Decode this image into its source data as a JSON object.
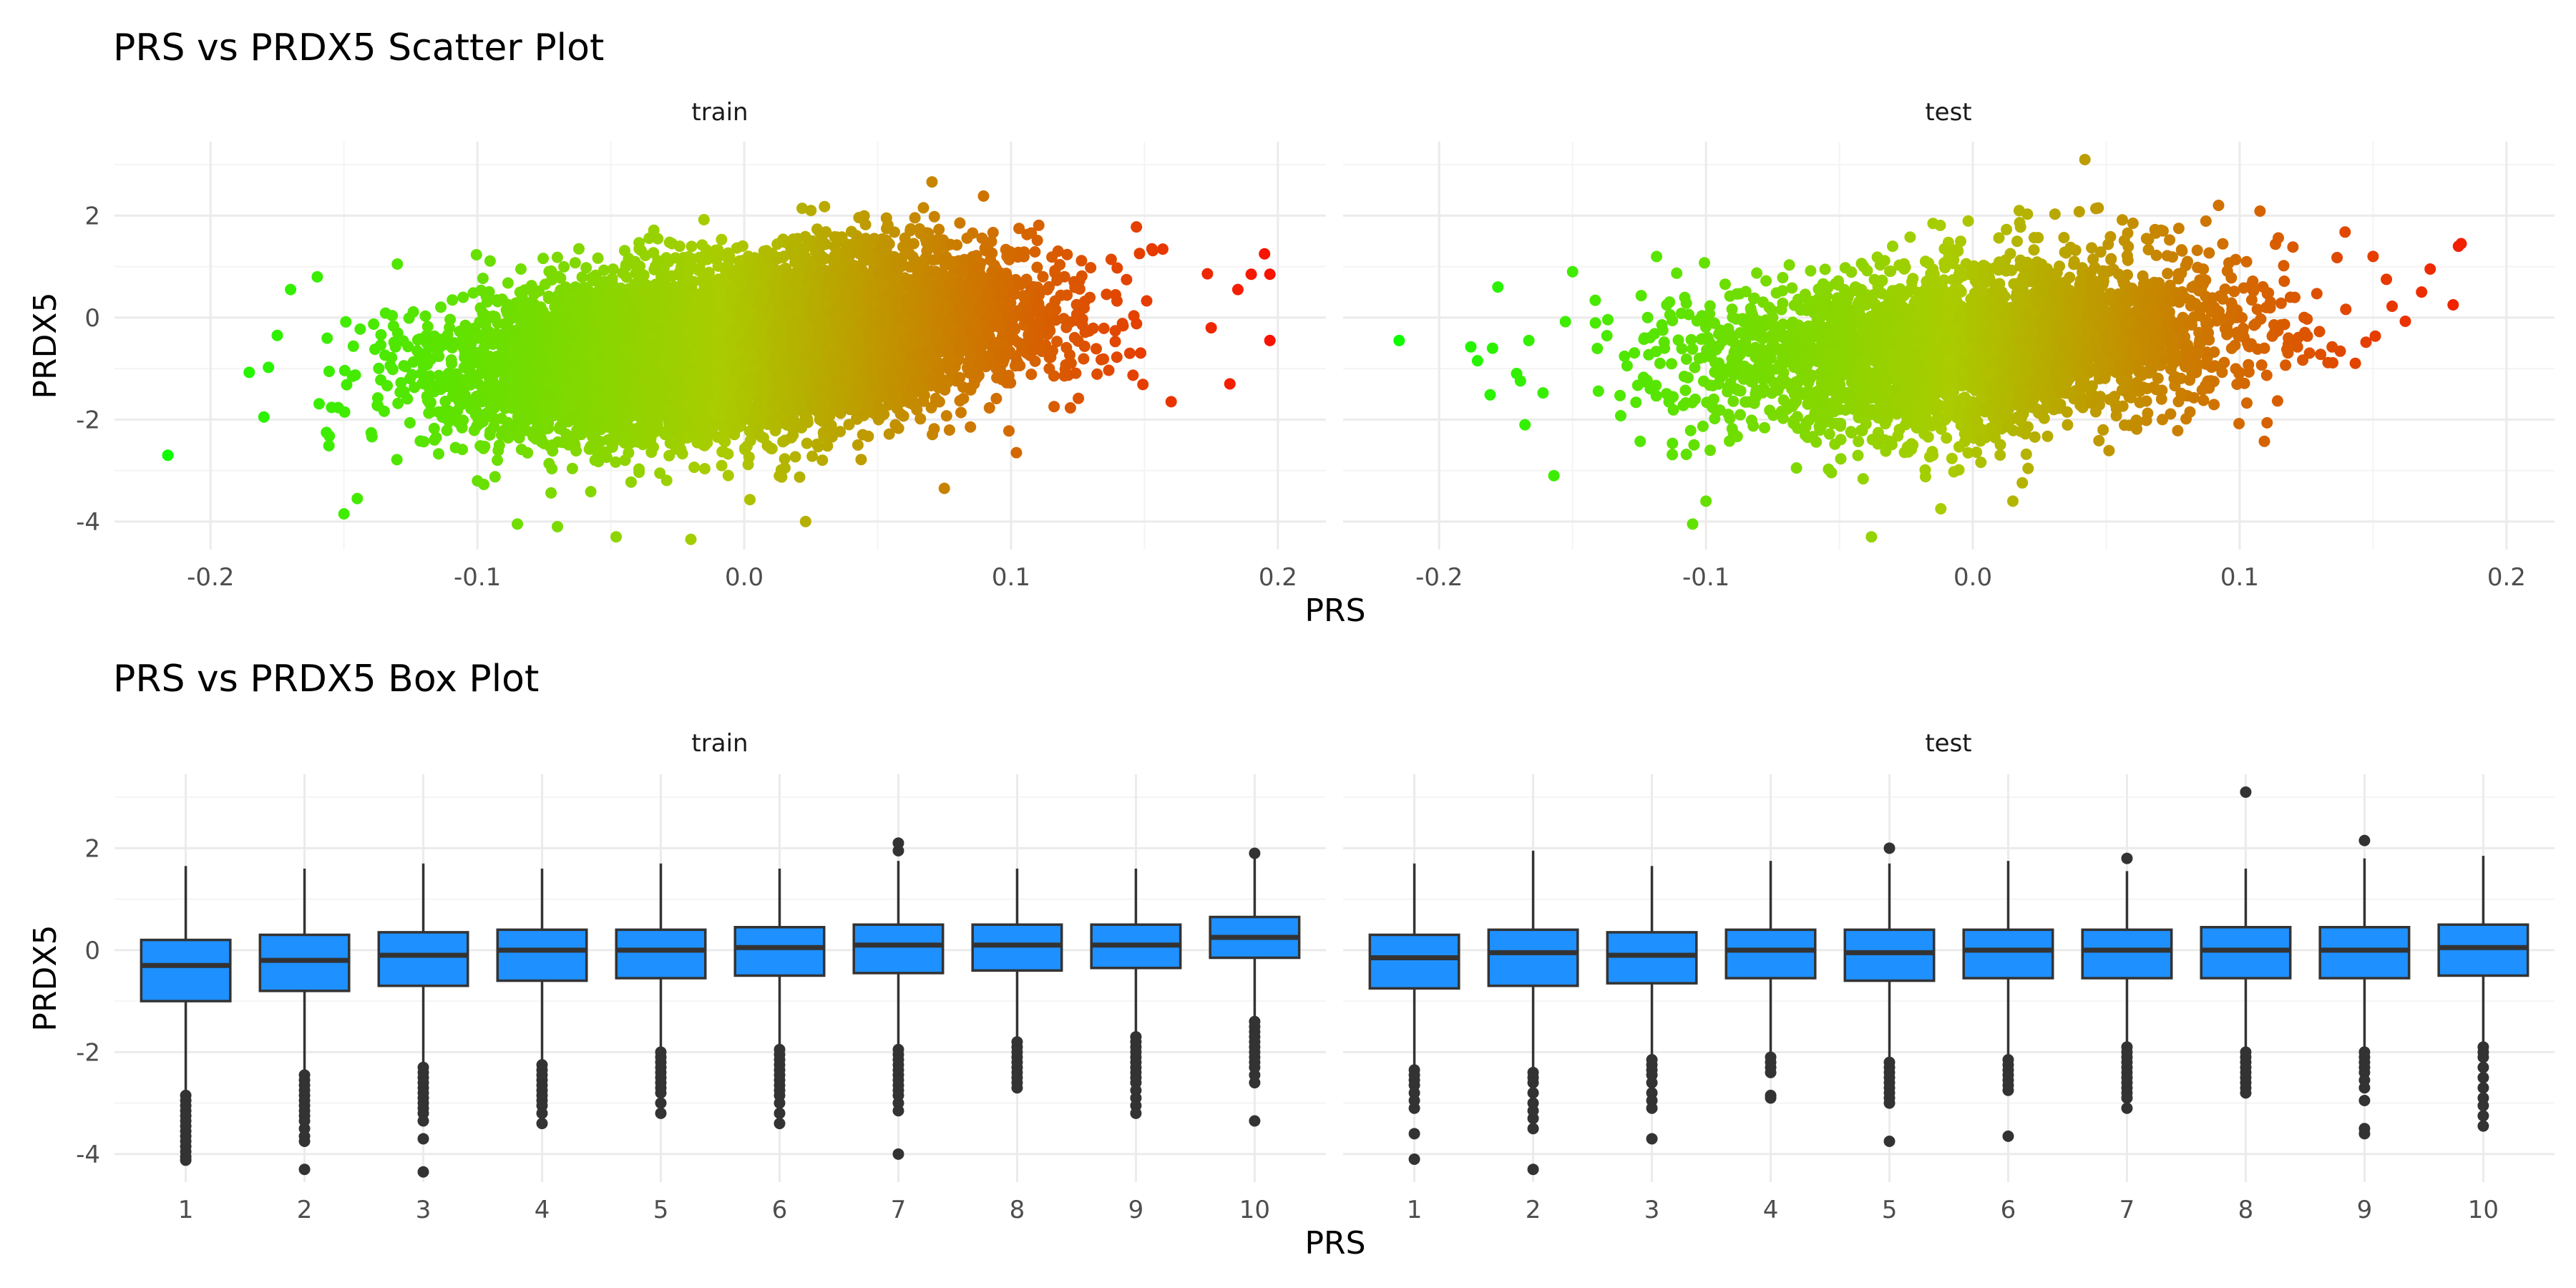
{
  "colors": {
    "panel_bg": "#ffffff",
    "grid_major": "#ebebeb",
    "grid_minor": "#f4f4f4",
    "box_fill": "#1e90ff",
    "box_stroke": "#333333",
    "outlier": "#333333",
    "gradient_low": "#00ff00",
    "gradient_mid": "#aacc00",
    "gradient_high": "#ff0000"
  },
  "chart_data": [
    {
      "type": "scatter",
      "title": "PRS vs PRDX5 Scatter Plot",
      "xlabel": "PRS",
      "ylabel": "PRDX5",
      "xlim": [
        -0.236,
        0.218
      ],
      "ylim": [
        -4.55,
        3.45
      ],
      "x_ticks": [
        -0.2,
        -0.1,
        0.0,
        0.1,
        0.2
      ],
      "x_tick_labels": [
        "-0.2",
        "-0.1",
        "0.0",
        "0.1",
        "0.2"
      ],
      "y_ticks": [
        -4,
        -2,
        0,
        2
      ],
      "y_tick_labels": [
        "-4",
        "-2",
        "0",
        "2"
      ],
      "grid": true,
      "color_by": "PRS",
      "color_scale": [
        "#00ff00",
        "#ff0000"
      ],
      "facets": [
        {
          "label": "train",
          "cloud": {
            "n": 9000,
            "x_mean": 0.0,
            "x_sd": 0.05,
            "y_intercept": -0.55,
            "y_slope": 5.0,
            "y_sd": 0.78
          },
          "extreme_points": [
            {
              "x": -0.216,
              "y": -2.7
            },
            {
              "x": -0.18,
              "y": -1.95
            },
            {
              "x": -0.175,
              "y": -0.35
            },
            {
              "x": -0.17,
              "y": 0.55
            },
            {
              "x": -0.16,
              "y": 0.8
            },
            {
              "x": -0.15,
              "y": -3.85
            },
            {
              "x": -0.145,
              "y": -3.55
            },
            {
              "x": -0.13,
              "y": 1.05
            },
            {
              "x": -0.085,
              "y": -4.05
            },
            {
              "x": -0.07,
              "y": -4.1
            },
            {
              "x": -0.048,
              "y": -4.3
            },
            {
              "x": -0.02,
              "y": -4.35
            },
            {
              "x": 0.023,
              "y": -4.0
            },
            {
              "x": 0.025,
              "y": 2.1
            },
            {
              "x": 0.075,
              "y": -3.35
            },
            {
              "x": 0.102,
              "y": -2.65
            },
            {
              "x": 0.16,
              "y": -1.65
            },
            {
              "x": 0.175,
              "y": -0.2
            },
            {
              "x": 0.182,
              "y": -1.3
            },
            {
              "x": 0.185,
              "y": 0.55
            },
            {
              "x": 0.19,
              "y": 0.85
            },
            {
              "x": 0.195,
              "y": 1.25
            },
            {
              "x": 0.197,
              "y": 0.85
            },
            {
              "x": 0.197,
              "y": -0.45
            }
          ]
        },
        {
          "label": "test",
          "cloud": {
            "n": 3500,
            "x_mean": 0.0,
            "x_sd": 0.05,
            "y_intercept": -0.55,
            "y_slope": 3.5,
            "y_sd": 0.8
          },
          "extreme_points": [
            {
              "x": -0.215,
              "y": -0.45
            },
            {
              "x": -0.18,
              "y": -0.6
            },
            {
              "x": -0.178,
              "y": 0.6
            },
            {
              "x": -0.157,
              "y": -3.1
            },
            {
              "x": -0.15,
              "y": 0.9
            },
            {
              "x": -0.105,
              "y": -4.05
            },
            {
              "x": -0.1,
              "y": -3.6
            },
            {
              "x": -0.038,
              "y": -4.3
            },
            {
              "x": -0.012,
              "y": -3.75
            },
            {
              "x": 0.015,
              "y": -3.6
            },
            {
              "x": 0.042,
              "y": 3.1
            },
            {
              "x": 0.047,
              "y": 2.15
            },
            {
              "x": 0.06,
              "y": 1.85
            },
            {
              "x": 0.15,
              "y": 1.2
            },
            {
              "x": 0.155,
              "y": 0.75
            },
            {
              "x": 0.18,
              "y": 0.25
            },
            {
              "x": 0.182,
              "y": 1.4
            },
            {
              "x": 0.183,
              "y": 1.45
            }
          ]
        }
      ]
    },
    {
      "type": "box",
      "title": "PRS vs PRDX5 Box Plot",
      "xlabel": "PRS",
      "ylabel": "PRDX5",
      "categories": [
        "1",
        "2",
        "3",
        "4",
        "5",
        "6",
        "7",
        "8",
        "9",
        "10"
      ],
      "ylim": [
        -4.55,
        3.45
      ],
      "y_ticks": [
        -4,
        -2,
        0,
        2
      ],
      "y_tick_labels": [
        "-4",
        "-2",
        "0",
        "2"
      ],
      "grid": true,
      "facets": [
        {
          "label": "train",
          "boxes": [
            {
              "category": "1",
              "q1": -1.0,
              "median": -0.3,
              "q3": 0.2,
              "whisker_low": -2.75,
              "whisker_high": 1.65,
              "outliers": [
                -2.85,
                -2.95,
                -3.05,
                -3.15,
                -3.25,
                -3.35,
                -3.45,
                -3.55,
                -3.65,
                -3.75,
                -3.85,
                -3.95,
                -4.05,
                -4.12
              ]
            },
            {
              "category": "2",
              "q1": -0.8,
              "median": -0.2,
              "q3": 0.3,
              "whisker_low": -2.35,
              "whisker_high": 1.6,
              "outliers": [
                -2.45,
                -2.55,
                -2.65,
                -2.75,
                -2.85,
                -2.95,
                -3.05,
                -3.15,
                -3.25,
                -3.35,
                -3.5,
                -3.65,
                -3.75,
                -4.3
              ]
            },
            {
              "category": "3",
              "q1": -0.7,
              "median": -0.1,
              "q3": 0.35,
              "whisker_low": -2.2,
              "whisker_high": 1.7,
              "outliers": [
                -2.3,
                -2.4,
                -2.5,
                -2.6,
                -2.7,
                -2.8,
                -2.9,
                -3.0,
                -3.1,
                -3.2,
                -3.35,
                -3.7,
                -4.35
              ]
            },
            {
              "category": "4",
              "q1": -0.6,
              "median": 0.0,
              "q3": 0.4,
              "whisker_low": -2.15,
              "whisker_high": 1.6,
              "outliers": [
                -2.25,
                -2.35,
                -2.45,
                -2.55,
                -2.65,
                -2.75,
                -2.85,
                -2.95,
                -3.05,
                -3.2,
                -3.4
              ]
            },
            {
              "category": "5",
              "q1": -0.55,
              "median": 0.0,
              "q3": 0.4,
              "whisker_low": -1.95,
              "whisker_high": 1.7,
              "outliers": [
                -2.0,
                -2.1,
                -2.2,
                -2.3,
                -2.4,
                -2.5,
                -2.6,
                -2.7,
                -2.8,
                -3.0,
                -3.2
              ]
            },
            {
              "category": "6",
              "q1": -0.5,
              "median": 0.05,
              "q3": 0.45,
              "whisker_low": -1.85,
              "whisker_high": 1.6,
              "outliers": [
                -1.95,
                -2.05,
                -2.15,
                -2.25,
                -2.35,
                -2.45,
                -2.55,
                -2.65,
                -2.75,
                -2.85,
                -3.0,
                -3.2,
                -3.4
              ]
            },
            {
              "category": "7",
              "q1": -0.45,
              "median": 0.1,
              "q3": 0.5,
              "whisker_low": -1.85,
              "whisker_high": 1.75,
              "outliers": [
                -1.95,
                -2.05,
                -2.15,
                -2.25,
                -2.35,
                -2.45,
                -2.55,
                -2.65,
                -2.75,
                -2.85,
                -3.0,
                -3.15,
                -4.0,
                1.95,
                2.1
              ]
            },
            {
              "category": "8",
              "q1": -0.4,
              "median": 0.1,
              "q3": 0.5,
              "whisker_low": -1.75,
              "whisker_high": 1.6,
              "outliers": [
                -1.8,
                -1.9,
                -2.0,
                -2.1,
                -2.2,
                -2.3,
                -2.4,
                -2.5,
                -2.6,
                -2.7
              ]
            },
            {
              "category": "9",
              "q1": -0.35,
              "median": 0.1,
              "q3": 0.5,
              "whisker_low": -1.65,
              "whisker_high": 1.6,
              "outliers": [
                -1.7,
                -1.8,
                -1.9,
                -2.0,
                -2.1,
                -2.2,
                -2.3,
                -2.4,
                -2.5,
                -2.6,
                -2.75,
                -2.9,
                -3.05,
                -3.2
              ]
            },
            {
              "category": "10",
              "q1": -0.15,
              "median": 0.25,
              "q3": 0.65,
              "whisker_low": -1.35,
              "whisker_high": 1.85,
              "outliers": [
                -1.4,
                -1.5,
                -1.6,
                -1.7,
                -1.8,
                -1.9,
                -2.0,
                -2.1,
                -2.2,
                -2.3,
                -2.45,
                -2.6,
                -3.35,
                1.9
              ]
            }
          ]
        },
        {
          "label": "test",
          "boxes": [
            {
              "category": "1",
              "q1": -0.75,
              "median": -0.15,
              "q3": 0.3,
              "whisker_low": -2.3,
              "whisker_high": 1.7,
              "outliers": [
                -2.35,
                -2.45,
                -2.55,
                -2.65,
                -2.8,
                -2.95,
                -3.1,
                -3.6,
                -4.1
              ]
            },
            {
              "category": "2",
              "q1": -0.7,
              "median": -0.05,
              "q3": 0.4,
              "whisker_low": -2.3,
              "whisker_high": 1.95,
              "outliers": [
                -2.4,
                -2.5,
                -2.6,
                -2.8,
                -3.0,
                -3.15,
                -3.3,
                -3.5,
                -4.3
              ]
            },
            {
              "category": "3",
              "q1": -0.65,
              "median": -0.1,
              "q3": 0.35,
              "whisker_low": -2.1,
              "whisker_high": 1.65,
              "outliers": [
                -2.15,
                -2.25,
                -2.35,
                -2.45,
                -2.6,
                -2.8,
                -2.95,
                -3.1,
                -3.7
              ]
            },
            {
              "category": "4",
              "q1": -0.55,
              "median": 0.0,
              "q3": 0.4,
              "whisker_low": -2.05,
              "whisker_high": 1.75,
              "outliers": [
                -2.1,
                -2.2,
                -2.3,
                -2.4,
                -2.85,
                -2.9
              ]
            },
            {
              "category": "5",
              "q1": -0.6,
              "median": -0.05,
              "q3": 0.4,
              "whisker_low": -2.15,
              "whisker_high": 1.7,
              "outliers": [
                -2.2,
                -2.3,
                -2.4,
                -2.5,
                -2.6,
                -2.7,
                -2.8,
                -2.9,
                -3.0,
                -3.75,
                2.0
              ]
            },
            {
              "category": "6",
              "q1": -0.55,
              "median": 0.0,
              "q3": 0.4,
              "whisker_low": -2.1,
              "whisker_high": 1.75,
              "outliers": [
                -2.15,
                -2.25,
                -2.35,
                -2.45,
                -2.55,
                -2.65,
                -2.75,
                -3.65
              ]
            },
            {
              "category": "7",
              "q1": -0.55,
              "median": 0.0,
              "q3": 0.4,
              "whisker_low": -1.85,
              "whisker_high": 1.55,
              "outliers": [
                -1.9,
                -2.0,
                -2.1,
                -2.2,
                -2.3,
                -2.4,
                -2.5,
                -2.6,
                -2.7,
                -2.8,
                -2.9,
                -3.1,
                1.8
              ]
            },
            {
              "category": "8",
              "q1": -0.55,
              "median": 0.0,
              "q3": 0.45,
              "whisker_low": -1.95,
              "whisker_high": 1.6,
              "outliers": [
                -2.0,
                -2.1,
                -2.2,
                -2.3,
                -2.4,
                -2.5,
                -2.6,
                -2.7,
                -2.8,
                3.1
              ]
            },
            {
              "category": "9",
              "q1": -0.55,
              "median": 0.0,
              "q3": 0.45,
              "whisker_low": -1.95,
              "whisker_high": 1.8,
              "outliers": [
                -2.0,
                -2.1,
                -2.2,
                -2.3,
                -2.4,
                -2.55,
                -2.7,
                -2.95,
                -3.5,
                -3.6,
                2.15
              ]
            },
            {
              "category": "10",
              "q1": -0.5,
              "median": 0.05,
              "q3": 0.5,
              "whisker_low": -1.85,
              "whisker_high": 1.85,
              "outliers": [
                -1.9,
                -2.0,
                -2.1,
                -2.3,
                -2.5,
                -2.7,
                -2.9,
                -3.05,
                -3.25,
                -3.45
              ]
            }
          ]
        }
      ]
    }
  ]
}
